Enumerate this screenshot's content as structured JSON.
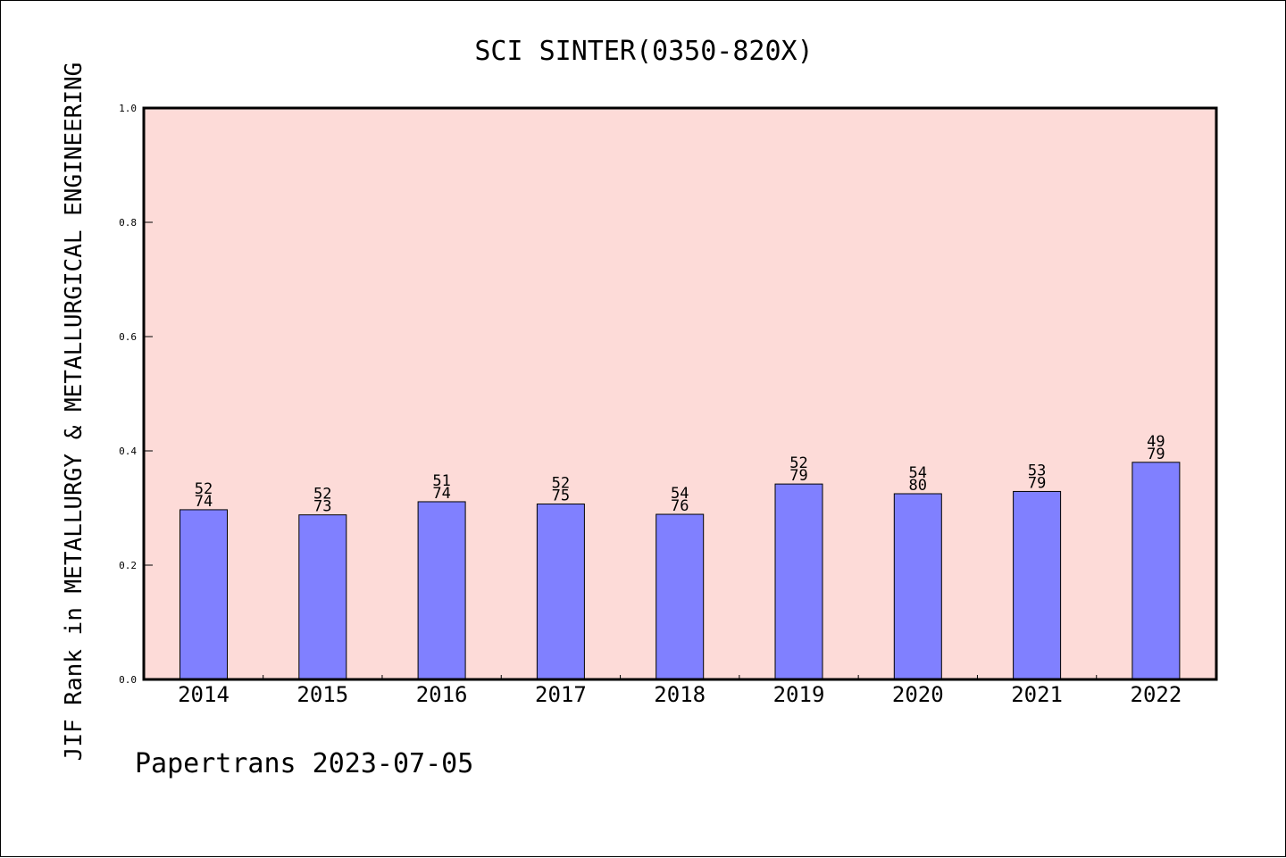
{
  "title": "SCI SINTER(0350-820X)",
  "ylabel": "JIF Rank in METALLURGY & METALLURGICAL ENGINEERING",
  "footer": "Papertrans 2023-07-05",
  "colors": {
    "plot_bg": "#fddbd8",
    "bar": "#8080ff"
  },
  "chart_data": {
    "type": "bar",
    "title": "SCI SINTER(0350-820X)",
    "xlabel": "",
    "ylabel": "JIF Rank in METALLURGY & METALLURGICAL ENGINEERING",
    "categories": [
      "2014",
      "2015",
      "2016",
      "2017",
      "2018",
      "2019",
      "2020",
      "2021",
      "2022"
    ],
    "values": [
      0.297,
      0.288,
      0.311,
      0.307,
      0.289,
      0.342,
      0.325,
      0.329,
      0.38
    ],
    "ranks": [
      "52",
      "52",
      "51",
      "52",
      "54",
      "52",
      "54",
      "53",
      "49"
    ],
    "totals": [
      "74",
      "73",
      "74",
      "75",
      "76",
      "79",
      "80",
      "79",
      "79"
    ],
    "ylim": [
      0,
      1.0
    ],
    "yticks": [
      "0.0",
      "0.2",
      "0.4",
      "0.6",
      "0.8",
      "1.0"
    ],
    "grid": false,
    "legend": "none"
  }
}
